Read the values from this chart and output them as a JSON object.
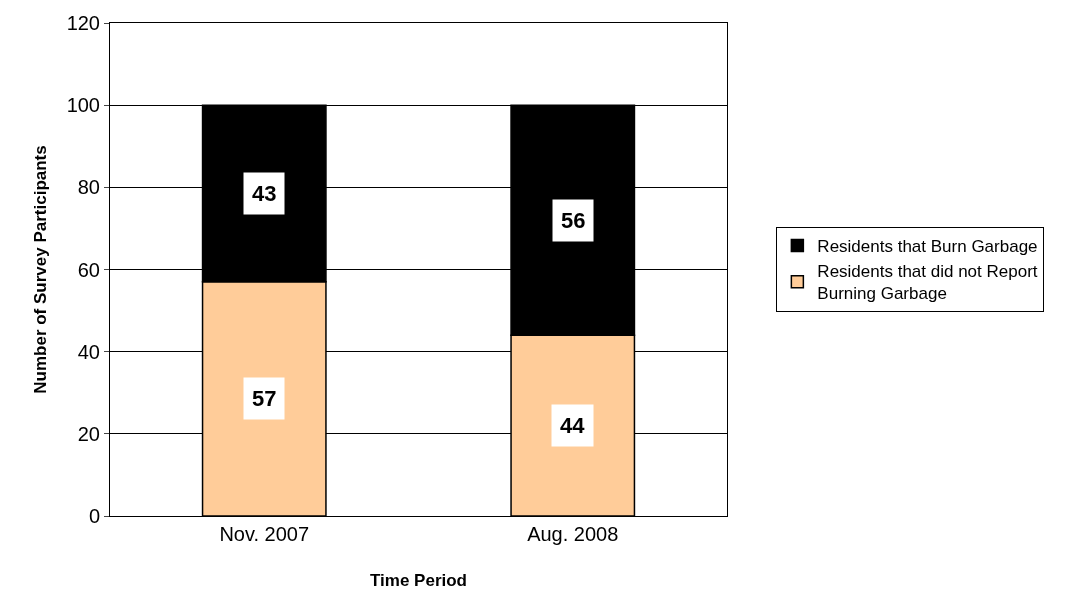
{
  "chart_data": {
    "type": "bar",
    "stacked": true,
    "xlabel": "Time Period",
    "ylabel": "Number of Survey Participants",
    "categories": [
      "Nov. 2007",
      "Aug. 2008"
    ],
    "series": [
      {
        "name": "Residents that did not Report Burning Garbage",
        "color": "#ffcc99",
        "values": [
          57,
          44
        ]
      },
      {
        "name": "Residents that Burn Garbage",
        "color": "#000000",
        "values": [
          43,
          56
        ]
      }
    ],
    "ylim": [
      0,
      120
    ],
    "yticks": [
      0,
      20,
      40,
      60,
      80,
      100,
      120
    ],
    "grid": "y",
    "legend": "right",
    "data_labels": true
  }
}
